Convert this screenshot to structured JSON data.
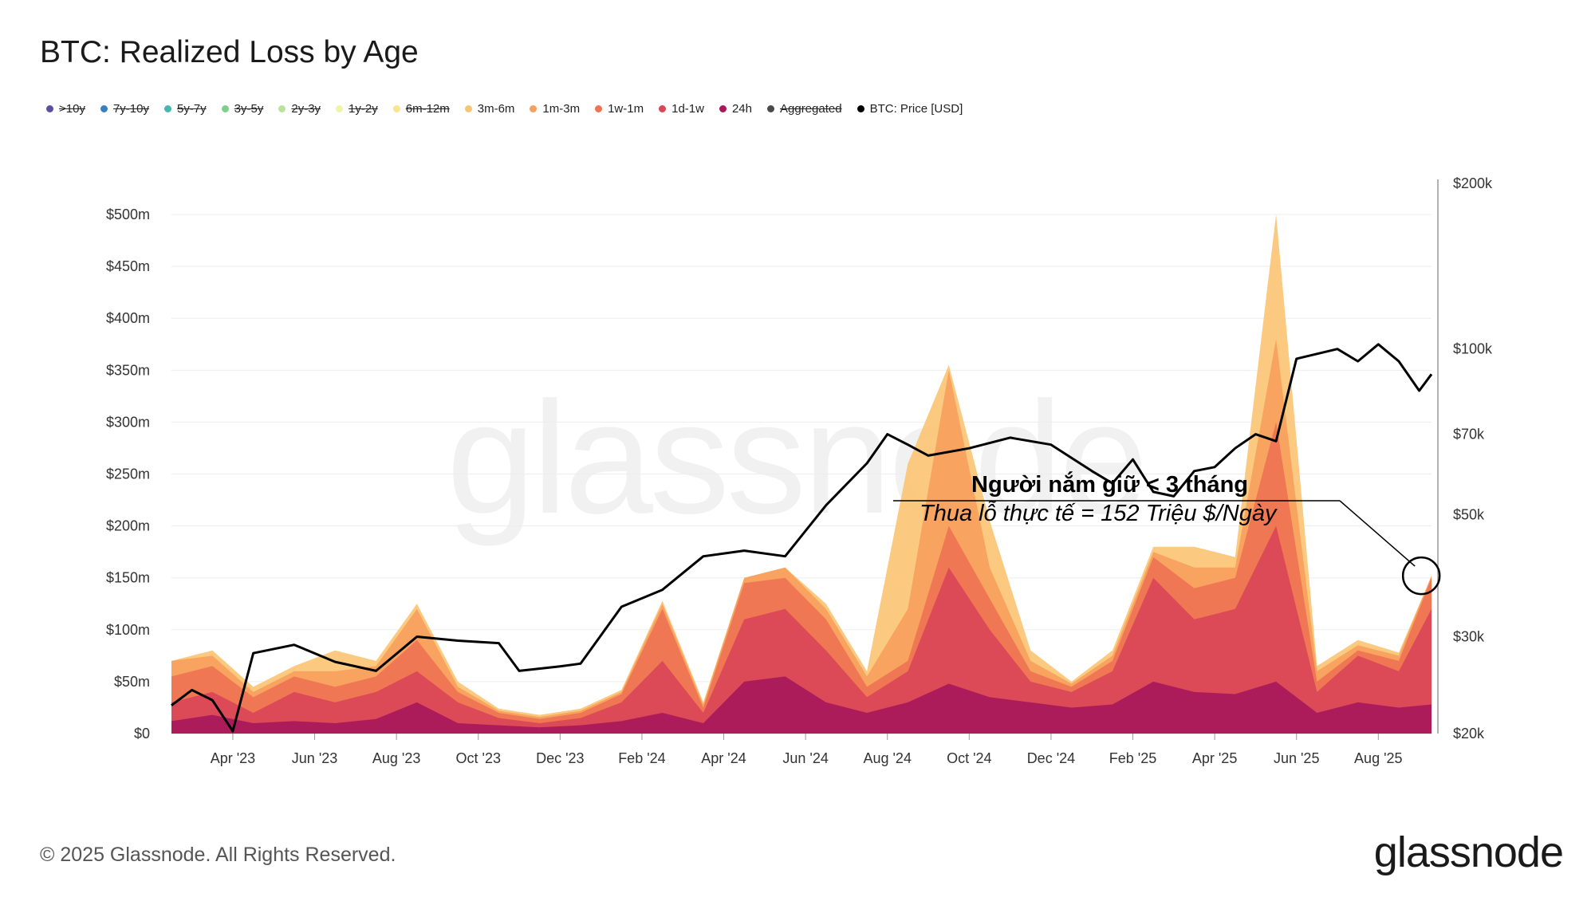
{
  "title": "BTC: Realized Loss by Age",
  "legend": [
    {
      "label": ">10y",
      "color": "#5b4f9e",
      "active": false
    },
    {
      "label": "7y-10y",
      "color": "#3a7fc1",
      "active": false
    },
    {
      "label": "5y-7y",
      "color": "#47b5b0",
      "active": false
    },
    {
      "label": "3y-5y",
      "color": "#7ecf8e",
      "active": false
    },
    {
      "label": "2y-3y",
      "color": "#b7e39a",
      "active": false
    },
    {
      "label": "1y-2y",
      "color": "#eef5a4",
      "active": false
    },
    {
      "label": "6m-12m",
      "color": "#fce38d",
      "active": false
    },
    {
      "label": "3m-6m",
      "color": "#fbc474",
      "active": true
    },
    {
      "label": "1m-3m",
      "color": "#f7a05c",
      "active": true
    },
    {
      "label": "1w-1m",
      "color": "#ef7352",
      "active": true
    },
    {
      "label": "1d-1w",
      "color": "#d94757",
      "active": true
    },
    {
      "label": "24h",
      "color": "#a8185a",
      "active": true
    },
    {
      "label": "Aggregated",
      "color": "#4a4a4a",
      "active": false
    },
    {
      "label": "BTC: Price [USD]",
      "color": "#000000",
      "active": true
    }
  ],
  "chart_data": {
    "type": "area",
    "x_ticks": [
      "Apr '23",
      "Jun '23",
      "Aug '23",
      "Oct '23",
      "Dec '23",
      "Feb '24",
      "Apr '24",
      "Jun '24",
      "Aug '24",
      "Oct '24",
      "Dec '24",
      "Feb '25",
      "Apr '25",
      "Jun '25",
      "Aug '25"
    ],
    "x_range_months": [
      1.5,
      32.3
    ],
    "y_left_ticks": [
      "$0",
      "$50m",
      "$100m",
      "$150m",
      "$200m",
      "$250m",
      "$300m",
      "$350m",
      "$400m",
      "$450m",
      "$500m"
    ],
    "y_left_range": [
      0,
      530
    ],
    "y_right_ticks": [
      "$20k",
      "$30k",
      "$50k",
      "$70k",
      "$100k",
      "$200k"
    ],
    "y_right_tick_values": [
      20000,
      30000,
      50000,
      70000,
      100000,
      200000
    ],
    "y_right_scale": "log",
    "y_right_range": [
      20000,
      200000
    ],
    "series_order": [
      "3m-6m",
      "1m-3m",
      "1w-1m",
      "1d-1w",
      "24h"
    ],
    "loss_stacked_totals": {
      "description": "peak points [month, cumulative $m] for each stacked layer top",
      "24h": [
        [
          1.5,
          12
        ],
        [
          2.5,
          18
        ],
        [
          3.5,
          10
        ],
        [
          4.5,
          12
        ],
        [
          5.5,
          10
        ],
        [
          6.5,
          14
        ],
        [
          7.5,
          30
        ],
        [
          8.5,
          10
        ],
        [
          9.5,
          8
        ],
        [
          10.5,
          6
        ],
        [
          11.5,
          8
        ],
        [
          12.5,
          12
        ],
        [
          13.5,
          20
        ],
        [
          14.5,
          10
        ],
        [
          15.5,
          50
        ],
        [
          16.5,
          55
        ],
        [
          17.5,
          30
        ],
        [
          18.5,
          20
        ],
        [
          19.5,
          30
        ],
        [
          20.5,
          48
        ],
        [
          21.5,
          35
        ],
        [
          22.5,
          30
        ],
        [
          23.5,
          25
        ],
        [
          24.5,
          28
        ],
        [
          25.5,
          50
        ],
        [
          26.5,
          40
        ],
        [
          27.5,
          38
        ],
        [
          28.5,
          50
        ],
        [
          29.5,
          20
        ],
        [
          30.5,
          30
        ],
        [
          31.5,
          25
        ],
        [
          32.3,
          28
        ]
      ],
      "1d-1w": [
        [
          1.5,
          30
        ],
        [
          2.5,
          40
        ],
        [
          3.5,
          20
        ],
        [
          4.5,
          40
        ],
        [
          5.5,
          30
        ],
        [
          6.5,
          40
        ],
        [
          7.5,
          60
        ],
        [
          8.5,
          30
        ],
        [
          9.5,
          15
        ],
        [
          10.5,
          10
        ],
        [
          11.5,
          15
        ],
        [
          12.5,
          30
        ],
        [
          13.5,
          70
        ],
        [
          14.5,
          20
        ],
        [
          15.5,
          110
        ],
        [
          16.5,
          120
        ],
        [
          17.5,
          80
        ],
        [
          18.5,
          35
        ],
        [
          19.5,
          60
        ],
        [
          20.5,
          160
        ],
        [
          21.5,
          100
        ],
        [
          22.5,
          50
        ],
        [
          23.5,
          40
        ],
        [
          24.5,
          60
        ],
        [
          25.5,
          150
        ],
        [
          26.5,
          110
        ],
        [
          27.5,
          120
        ],
        [
          28.5,
          200
        ],
        [
          29.5,
          40
        ],
        [
          30.5,
          75
        ],
        [
          31.5,
          60
        ],
        [
          32.3,
          120
        ]
      ],
      "1w-1m": [
        [
          1.5,
          55
        ],
        [
          2.5,
          65
        ],
        [
          3.5,
          35
        ],
        [
          4.5,
          55
        ],
        [
          5.5,
          45
        ],
        [
          6.5,
          55
        ],
        [
          7.5,
          90
        ],
        [
          8.5,
          40
        ],
        [
          9.5,
          20
        ],
        [
          10.5,
          14
        ],
        [
          11.5,
          20
        ],
        [
          12.5,
          38
        ],
        [
          13.5,
          120
        ],
        [
          14.5,
          25
        ],
        [
          15.5,
          145
        ],
        [
          16.5,
          150
        ],
        [
          17.5,
          110
        ],
        [
          18.5,
          45
        ],
        [
          19.5,
          70
        ],
        [
          20.5,
          200
        ],
        [
          21.5,
          130
        ],
        [
          22.5,
          60
        ],
        [
          23.5,
          45
        ],
        [
          24.5,
          70
        ],
        [
          25.5,
          170
        ],
        [
          26.5,
          140
        ],
        [
          27.5,
          150
        ],
        [
          28.5,
          300
        ],
        [
          29.5,
          50
        ],
        [
          30.5,
          80
        ],
        [
          31.5,
          70
        ],
        [
          32.3,
          150
        ]
      ],
      "1m-3m": [
        [
          1.5,
          70
        ],
        [
          2.5,
          75
        ],
        [
          3.5,
          40
        ],
        [
          4.5,
          60
        ],
        [
          5.5,
          60
        ],
        [
          6.5,
          65
        ],
        [
          7.5,
          120
        ],
        [
          8.5,
          45
        ],
        [
          9.5,
          22
        ],
        [
          10.5,
          16
        ],
        [
          11.5,
          22
        ],
        [
          12.5,
          40
        ],
        [
          13.5,
          125
        ],
        [
          14.5,
          28
        ],
        [
          15.5,
          150
        ],
        [
          16.5,
          160
        ],
        [
          17.5,
          120
        ],
        [
          18.5,
          55
        ],
        [
          19.5,
          120
        ],
        [
          20.5,
          350
        ],
        [
          21.5,
          160
        ],
        [
          22.5,
          70
        ],
        [
          23.5,
          48
        ],
        [
          24.5,
          75
        ],
        [
          25.5,
          175
        ],
        [
          26.5,
          160
        ],
        [
          27.5,
          160
        ],
        [
          28.5,
          380
        ],
        [
          29.5,
          60
        ],
        [
          30.5,
          85
        ],
        [
          31.5,
          75
        ],
        [
          32.3,
          152
        ]
      ],
      "3m-6m": [
        [
          1.5,
          70
        ],
        [
          2.5,
          80
        ],
        [
          3.5,
          45
        ],
        [
          4.5,
          65
        ],
        [
          5.5,
          80
        ],
        [
          6.5,
          70
        ],
        [
          7.5,
          125
        ],
        [
          8.5,
          50
        ],
        [
          9.5,
          24
        ],
        [
          10.5,
          18
        ],
        [
          11.5,
          24
        ],
        [
          12.5,
          42
        ],
        [
          13.5,
          128
        ],
        [
          14.5,
          30
        ],
        [
          15.5,
          150
        ],
        [
          16.5,
          160
        ],
        [
          17.5,
          125
        ],
        [
          18.5,
          60
        ],
        [
          19.5,
          260
        ],
        [
          20.5,
          355
        ],
        [
          21.5,
          205
        ],
        [
          22.5,
          80
        ],
        [
          23.5,
          50
        ],
        [
          24.5,
          80
        ],
        [
          25.5,
          180
        ],
        [
          26.5,
          180
        ],
        [
          27.5,
          170
        ],
        [
          28.5,
          500
        ],
        [
          29.5,
          65
        ],
        [
          30.5,
          90
        ],
        [
          31.5,
          78
        ],
        [
          32.3,
          152
        ]
      ]
    },
    "btc_price": [
      [
        1.5,
        22500
      ],
      [
        2.0,
        24000
      ],
      [
        2.5,
        23000
      ],
      [
        3.0,
        20200
      ],
      [
        3.5,
        28000
      ],
      [
        4.5,
        29000
      ],
      [
        5.5,
        27000
      ],
      [
        6.5,
        26000
      ],
      [
        7.5,
        30000
      ],
      [
        8.5,
        29500
      ],
      [
        9.5,
        29200
      ],
      [
        10.0,
        26000
      ],
      [
        11.0,
        26500
      ],
      [
        11.5,
        26800
      ],
      [
        12.5,
        34000
      ],
      [
        13.5,
        36500
      ],
      [
        14.5,
        42000
      ],
      [
        15.5,
        43000
      ],
      [
        16.5,
        42000
      ],
      [
        17.5,
        52000
      ],
      [
        18.5,
        62000
      ],
      [
        19.0,
        70000
      ],
      [
        19.5,
        67000
      ],
      [
        20.0,
        64000
      ],
      [
        21.0,
        66000
      ],
      [
        22.0,
        69000
      ],
      [
        23.0,
        67000
      ],
      [
        24.0,
        60000
      ],
      [
        24.5,
        57000
      ],
      [
        25.0,
        63000
      ],
      [
        25.5,
        55000
      ],
      [
        26.0,
        54000
      ],
      [
        26.5,
        60000
      ],
      [
        27.0,
        61000
      ],
      [
        27.5,
        66000
      ],
      [
        28.0,
        70000
      ],
      [
        28.5,
        68000
      ],
      [
        29.0,
        96000
      ],
      [
        29.5,
        98000
      ],
      [
        30.0,
        100000
      ],
      [
        30.5,
        95000
      ],
      [
        31.0,
        102000
      ],
      [
        31.5,
        95000
      ],
      [
        32.0,
        84000
      ],
      [
        32.3,
        90000
      ]
    ],
    "annotation": {
      "title": "Người nắm giữ < 3 tháng",
      "subtitle": "Thua lỗ thực tế = 152 Triệu $/Ngày",
      "value_m": 152
    }
  },
  "footer": "© 2025 Glassnode. All Rights Reserved.",
  "brand": "glassnode",
  "watermark": "glassnode"
}
